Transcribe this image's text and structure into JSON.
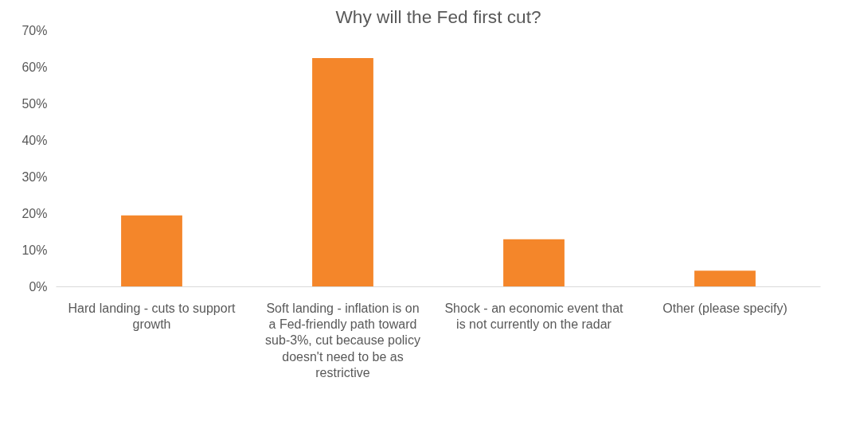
{
  "chart_data": {
    "type": "bar",
    "title": "Why will the Fed first cut?",
    "categories": [
      "Hard landing - cuts to support growth",
      "Soft landing - inflation is on a Fed-friendly path toward sub-3%, cut because policy doesn't need to be as restrictive",
      "Shock - an economic event that is not currently on the radar",
      "Other (please specify)"
    ],
    "values": [
      19.5,
      62.5,
      13,
      4.4
    ],
    "color": "#f4862a",
    "ylim": [
      0,
      70
    ],
    "yticks": [
      {
        "value": 0,
        "label": "0%"
      },
      {
        "value": 10,
        "label": "10%"
      },
      {
        "value": 20,
        "label": "20%"
      },
      {
        "value": 30,
        "label": "30%"
      },
      {
        "value": 40,
        "label": "40%"
      },
      {
        "value": 50,
        "label": "50%"
      },
      {
        "value": 60,
        "label": "60%"
      },
      {
        "value": 70,
        "label": "70%"
      }
    ],
    "grid": false
  }
}
